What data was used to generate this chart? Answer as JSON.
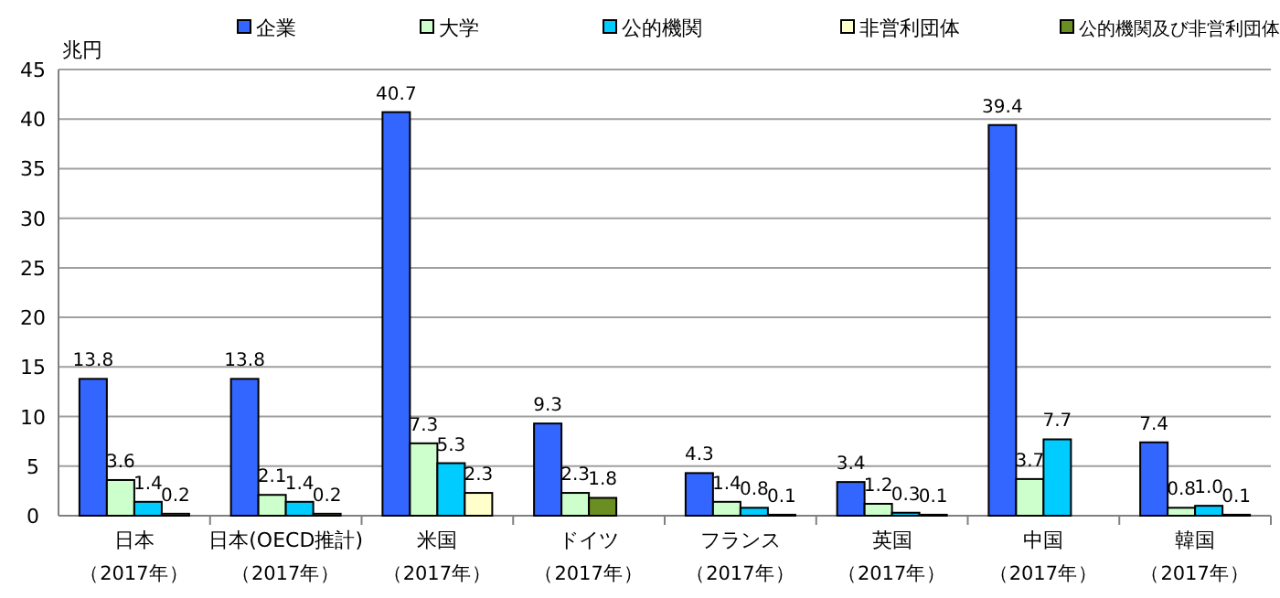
{
  "chart_data": {
    "type": "bar",
    "ylabel": "兆円",
    "categories": [
      "日本（2017年）",
      "日本(OECD推計)（2017年）",
      "米国（2017年）",
      "ドイツ（2017年）",
      "フランス（2017年）",
      "英国（2017年）",
      "中国（2017年）",
      "韓国（2017年）"
    ],
    "series": [
      {
        "name": "企業",
        "color": "#3366ff",
        "values": [
          13.8,
          13.8,
          40.7,
          9.3,
          4.3,
          3.4,
          39.4,
          7.4
        ],
        "value_labels": [
          "13.8",
          "13.8",
          "40.7",
          "9.3",
          "4.3",
          "3.4",
          "39.4",
          "7.4"
        ]
      },
      {
        "name": "大学",
        "color": "#ccffcc",
        "values": [
          3.6,
          2.1,
          7.3,
          2.3,
          1.4,
          1.2,
          3.7,
          0.8
        ],
        "value_labels": [
          "3.6",
          "2.1",
          "7.3",
          "2.3",
          "1.4",
          "1.2",
          "3.7",
          "0.8"
        ]
      },
      {
        "name": "公的機関",
        "color": "#00ccff",
        "values": [
          1.4,
          1.4,
          5.3,
          null,
          0.8,
          0.3,
          7.7,
          1.0
        ],
        "value_labels": [
          "1.4",
          "1.4",
          "5.3",
          null,
          "0.8",
          "0.3",
          "7.7",
          "1.0"
        ]
      },
      {
        "name": "非営利団体",
        "color": "#ffffcc",
        "values": [
          0.2,
          0.2,
          2.3,
          null,
          0.1,
          0.1,
          null,
          0.1
        ],
        "value_labels": [
          "0.2",
          "0.2",
          "2.3",
          null,
          "0.1",
          "0.1",
          null,
          "0.1"
        ]
      },
      {
        "name": "公的機関及び非営利団体",
        "color": "#6b8e23",
        "values": [
          null,
          null,
          null,
          1.8,
          null,
          null,
          null,
          null
        ],
        "value_labels": [
          null,
          null,
          null,
          "1.8",
          null,
          null,
          null,
          null
        ]
      }
    ],
    "ylim": [
      0,
      45
    ],
    "yticks": [
      0,
      5,
      10,
      15,
      20,
      25,
      30,
      35,
      40,
      45
    ],
    "grid": "y",
    "legend": "top"
  }
}
